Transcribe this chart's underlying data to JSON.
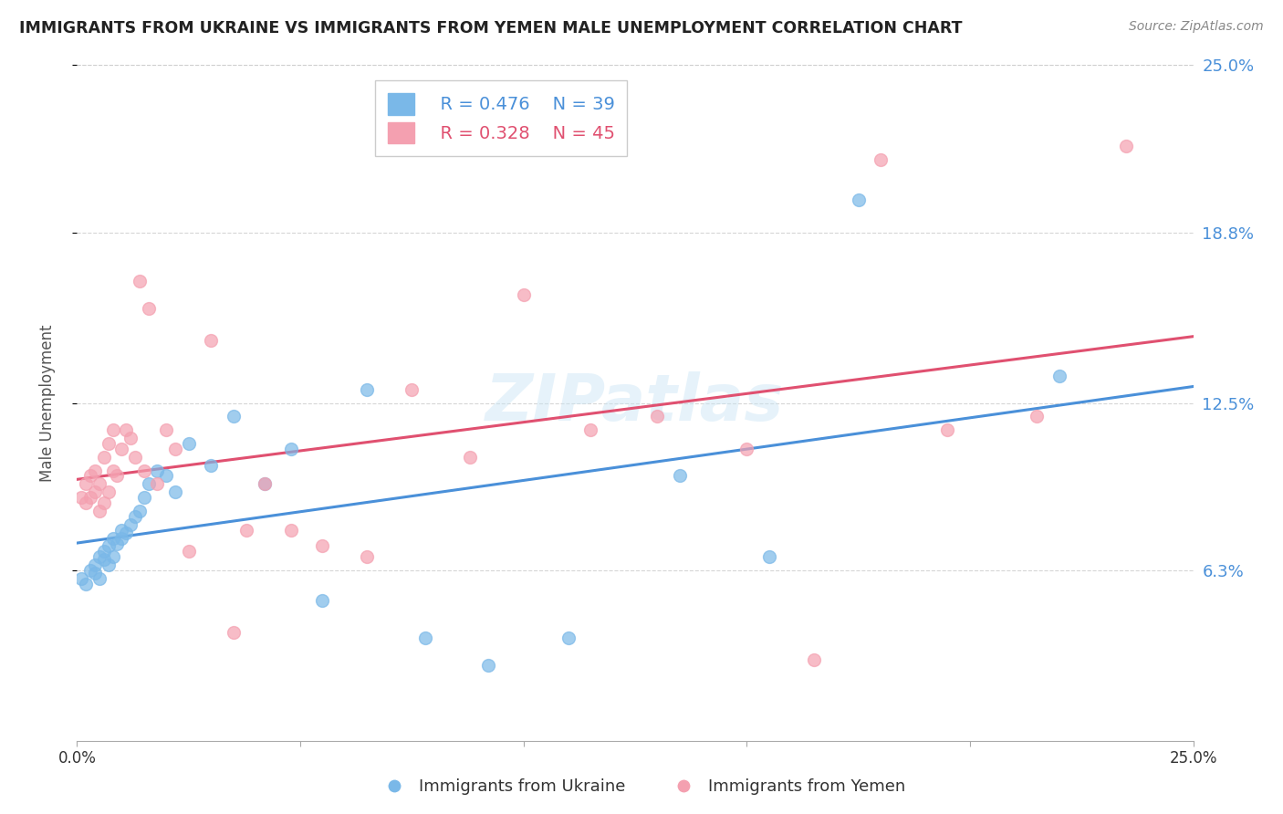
{
  "title": "IMMIGRANTS FROM UKRAINE VS IMMIGRANTS FROM YEMEN MALE UNEMPLOYMENT CORRELATION CHART",
  "source": "Source: ZipAtlas.com",
  "ylabel": "Male Unemployment",
  "xlabel_ukraine": "Immigrants from Ukraine",
  "xlabel_yemen": "Immigrants from Yemen",
  "xlim": [
    0.0,
    0.25
  ],
  "ylim": [
    0.0,
    0.25
  ],
  "ytick_vals": [
    0.063,
    0.125,
    0.188,
    0.25
  ],
  "ytick_labels": [
    "6.3%",
    "12.5%",
    "18.8%",
    "25.0%"
  ],
  "r_ukraine": 0.476,
  "n_ukraine": 39,
  "r_yemen": 0.328,
  "n_yemen": 45,
  "ukraine_color": "#7ab8e8",
  "yemen_color": "#f4a0b0",
  "ukraine_line_color": "#4a90d9",
  "yemen_line_color": "#e05070",
  "grid_color": "#cccccc",
  "watermark": "ZIPatlas",
  "ukraine_x": [
    0.001,
    0.002,
    0.003,
    0.004,
    0.004,
    0.005,
    0.005,
    0.006,
    0.006,
    0.007,
    0.007,
    0.008,
    0.008,
    0.009,
    0.01,
    0.01,
    0.011,
    0.012,
    0.013,
    0.014,
    0.015,
    0.016,
    0.018,
    0.02,
    0.022,
    0.025,
    0.03,
    0.035,
    0.042,
    0.048,
    0.055,
    0.065,
    0.078,
    0.092,
    0.11,
    0.135,
    0.155,
    0.175,
    0.22
  ],
  "ukraine_y": [
    0.06,
    0.058,
    0.063,
    0.062,
    0.065,
    0.06,
    0.068,
    0.067,
    0.07,
    0.065,
    0.072,
    0.068,
    0.075,
    0.073,
    0.075,
    0.078,
    0.077,
    0.08,
    0.083,
    0.085,
    0.09,
    0.095,
    0.1,
    0.098,
    0.092,
    0.11,
    0.102,
    0.12,
    0.095,
    0.108,
    0.052,
    0.13,
    0.038,
    0.028,
    0.038,
    0.098,
    0.068,
    0.2,
    0.135
  ],
  "yemen_x": [
    0.001,
    0.002,
    0.002,
    0.003,
    0.003,
    0.004,
    0.004,
    0.005,
    0.005,
    0.006,
    0.006,
    0.007,
    0.007,
    0.008,
    0.008,
    0.009,
    0.01,
    0.011,
    0.012,
    0.013,
    0.014,
    0.015,
    0.016,
    0.018,
    0.02,
    0.022,
    0.025,
    0.03,
    0.035,
    0.038,
    0.042,
    0.048,
    0.055,
    0.065,
    0.075,
    0.088,
    0.1,
    0.115,
    0.13,
    0.15,
    0.165,
    0.18,
    0.195,
    0.215,
    0.235
  ],
  "yemen_y": [
    0.09,
    0.088,
    0.095,
    0.09,
    0.098,
    0.092,
    0.1,
    0.085,
    0.095,
    0.088,
    0.105,
    0.092,
    0.11,
    0.1,
    0.115,
    0.098,
    0.108,
    0.115,
    0.112,
    0.105,
    0.17,
    0.1,
    0.16,
    0.095,
    0.115,
    0.108,
    0.07,
    0.148,
    0.04,
    0.078,
    0.095,
    0.078,
    0.072,
    0.068,
    0.13,
    0.105,
    0.165,
    0.115,
    0.12,
    0.108,
    0.03,
    0.215,
    0.115,
    0.12,
    0.22
  ]
}
